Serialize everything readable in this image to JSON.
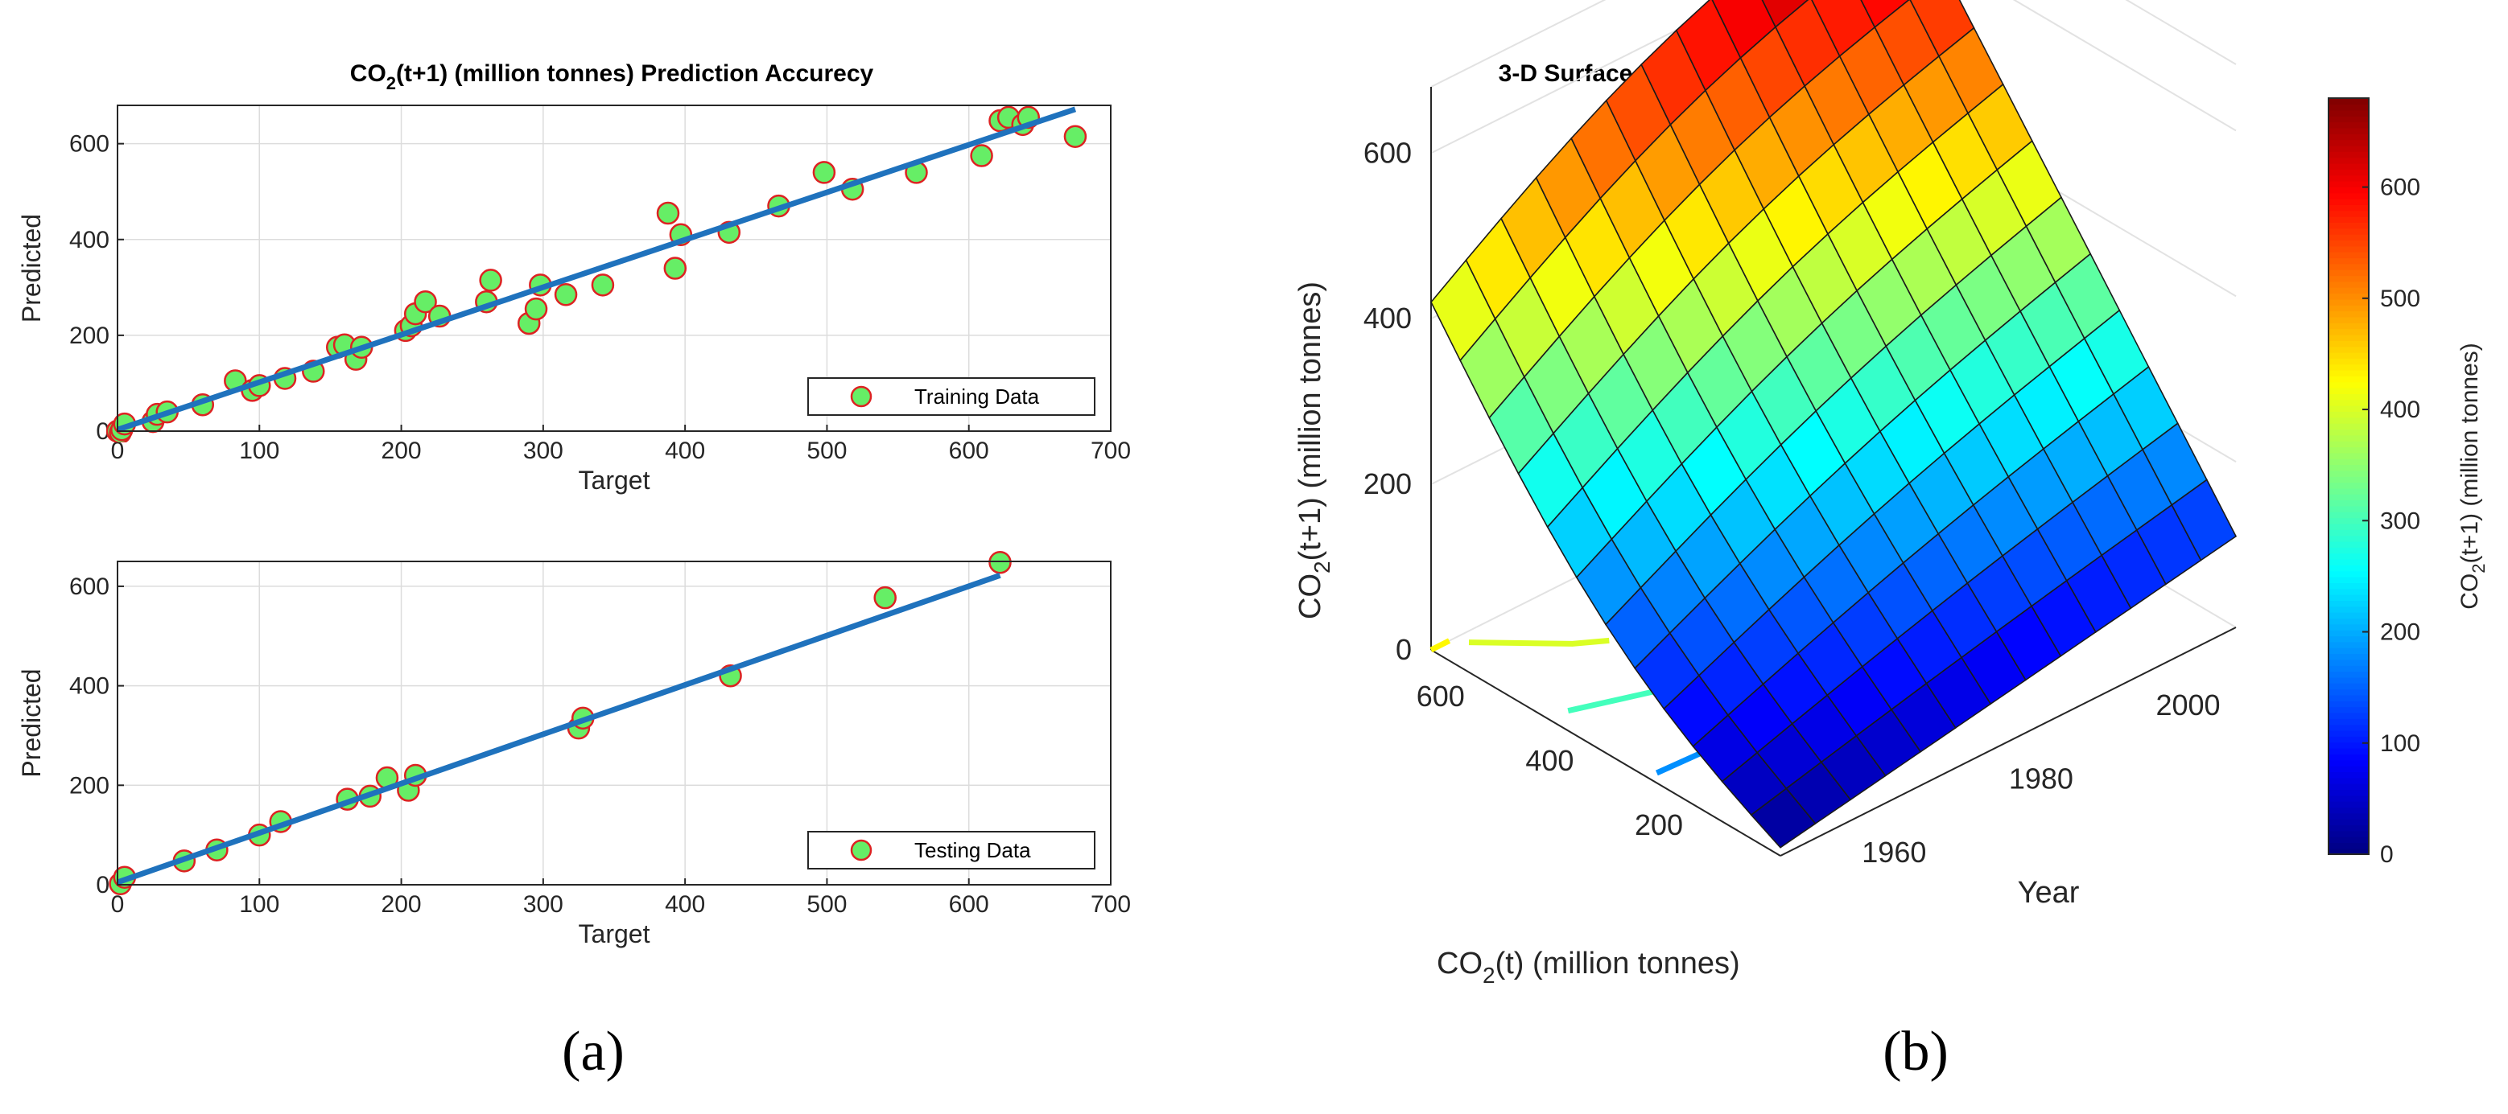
{
  "colors": {
    "marker_fill": "#66ee66",
    "marker_edge": "#dd2222",
    "fit_line": "#1f72bd",
    "axes": "#262626",
    "grid": "#dcdcdc"
  },
  "panel_a": {
    "title_prefix": "CO",
    "title_sub": "2",
    "title_suffix": "(t+1) (million tonnes) Prediction Accurecy",
    "caption": "(a)"
  },
  "panel_b": {
    "caption": "(b)"
  },
  "chart_data": [
    {
      "type": "scatter",
      "title": "CO2(t+1) (million tonnes) Prediction Accurecy",
      "xlabel": "Target",
      "ylabel": "Predicted",
      "xlim": [
        0,
        700
      ],
      "ylim": [
        0,
        680
      ],
      "xticks": [
        0,
        100,
        200,
        300,
        400,
        500,
        600,
        700
      ],
      "yticks": [
        0,
        200,
        400,
        600
      ],
      "legend": "Training Data",
      "legend_position": "bottom-right",
      "fit_line": {
        "x": [
          0,
          675
        ],
        "y": [
          3,
          672
        ]
      },
      "points": [
        [
          0,
          0
        ],
        [
          2,
          -3
        ],
        [
          3,
          3
        ],
        [
          5,
          15
        ],
        [
          25,
          20
        ],
        [
          28,
          35
        ],
        [
          35,
          40
        ],
        [
          60,
          55
        ],
        [
          83,
          105
        ],
        [
          95,
          85
        ],
        [
          100,
          95
        ],
        [
          118,
          110
        ],
        [
          138,
          125
        ],
        [
          155,
          175
        ],
        [
          160,
          180
        ],
        [
          168,
          150
        ],
        [
          172,
          175
        ],
        [
          203,
          210
        ],
        [
          207,
          220
        ],
        [
          210,
          245
        ],
        [
          217,
          270
        ],
        [
          227,
          240
        ],
        [
          260,
          270
        ],
        [
          263,
          315
        ],
        [
          290,
          225
        ],
        [
          295,
          255
        ],
        [
          298,
          305
        ],
        [
          316,
          285
        ],
        [
          342,
          305
        ],
        [
          388,
          455
        ],
        [
          393,
          340
        ],
        [
          397,
          410
        ],
        [
          431,
          415
        ],
        [
          466,
          470
        ],
        [
          498,
          540
        ],
        [
          518,
          505
        ],
        [
          563,
          540
        ],
        [
          609,
          575
        ],
        [
          622,
          648
        ],
        [
          628,
          655
        ],
        [
          638,
          640
        ],
        [
          642,
          655
        ],
        [
          675,
          615
        ]
      ]
    },
    {
      "type": "scatter",
      "title": "",
      "xlabel": "Target",
      "ylabel": "Predicted",
      "xlim": [
        0,
        700
      ],
      "ylim": [
        0,
        650
      ],
      "xticks": [
        0,
        100,
        200,
        300,
        400,
        500,
        600,
        700
      ],
      "yticks": [
        0,
        200,
        400,
        600
      ],
      "legend": "Testing Data",
      "legend_position": "bottom-right",
      "fit_line": {
        "x": [
          0,
          622
        ],
        "y": [
          5,
          622
        ]
      },
      "points": [
        [
          2,
          2
        ],
        [
          5,
          15
        ],
        [
          47,
          48
        ],
        [
          70,
          70
        ],
        [
          100,
          100
        ],
        [
          115,
          127
        ],
        [
          162,
          172
        ],
        [
          178,
          178
        ],
        [
          190,
          215
        ],
        [
          205,
          190
        ],
        [
          210,
          220
        ],
        [
          325,
          315
        ],
        [
          328,
          335
        ],
        [
          432,
          420
        ],
        [
          541,
          577
        ],
        [
          622,
          648
        ]
      ]
    },
    {
      "type": "surface",
      "title": "3-D Surface with Contours",
      "xlabel": "Year",
      "ylabel": "CO2(t) (million tonnes)",
      "zlabel": "CO2(t+1) (million tonnes)",
      "x_ticks": [
        1960,
        1980,
        2000
      ],
      "y_ticks": [
        200,
        400,
        600
      ],
      "z_ticks": [
        0,
        200,
        400,
        600
      ],
      "zlim": [
        0,
        680
      ],
      "colorbar": {
        "label": "CO2(t+1) (million tonnes)",
        "ticks": [
          0,
          100,
          200,
          300,
          400,
          500,
          600
        ],
        "range": [
          0,
          680
        ],
        "colormap": "jet"
      },
      "grid_rows": 12,
      "grid_cols": 13,
      "corner_values": {
        "low_year_low_co2": 10,
        "high_year_low_co2": 110,
        "low_year_high_co2": 420,
        "high_year_high_co2": 680
      }
    }
  ]
}
